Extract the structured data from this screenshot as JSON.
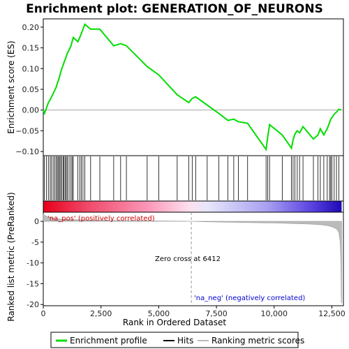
{
  "chart_data": {
    "type": "line",
    "title": "Enrichment plot: GENERATION_OF_NEURONS",
    "xlabel": "Rank in Ordered Dataset",
    "ylabel_top": "Enrichment score (ES)",
    "ylabel_bottom": "Ranked list metric (PreRanked)",
    "xlim": [
      0,
      13000
    ],
    "es_ylim": [
      -0.11,
      0.22
    ],
    "metric_ylim": [
      -20.3,
      2.2
    ],
    "x_ticks": [
      0,
      2500,
      5000,
      7500,
      10000,
      12500
    ],
    "x_tick_labels": [
      "0",
      "2,500",
      "5,000",
      "7,500",
      "10,000",
      "12,500"
    ],
    "es_ticks": [
      -0.1,
      -0.05,
      0.0,
      0.05,
      0.1,
      0.15,
      0.2
    ],
    "es_tick_labels": [
      "−0.10",
      "−0.05",
      "0.00",
      "0.05",
      "0.10",
      "0.15",
      "0.20"
    ],
    "metric_ticks": [
      0,
      -5,
      -10,
      -15,
      -20
    ],
    "metric_tick_labels": [
      "0",
      "-5",
      "-10",
      "-15",
      "-20"
    ],
    "zero_cross_rank": 6412,
    "zero_cross_label": "Zero cross at 6412",
    "pos_label": "'na_pos' (positively correlated)",
    "neg_label": "'na_neg' (negatively correlated)",
    "colors": {
      "es_line": "#00dd00",
      "hits": "#000000",
      "pos_label": "#cc0000",
      "neg_label": "#0000cc",
      "metric_fill": "#bbbbbb",
      "zero_line": "#999999"
    },
    "legend": [
      {
        "label": "Enrichment profile",
        "kind": "line-green"
      },
      {
        "label": "Hits",
        "kind": "line-black"
      },
      {
        "label": "Ranking metric scores",
        "kind": "line-gray"
      }
    ],
    "hit_ranks": [
      50,
      140,
      220,
      300,
      360,
      430,
      500,
      560,
      610,
      660,
      700,
      750,
      800,
      860,
      900,
      950,
      1000,
      1050,
      1120,
      1200,
      1250,
      1300,
      1500,
      1580,
      1650,
      1720,
      1800,
      2050,
      2450,
      3050,
      3350,
      3600,
      4500,
      5000,
      5800,
      6300,
      6450,
      6600,
      7100,
      7600,
      8000,
      8250,
      8450,
      8850,
      9650,
      9720,
      9800,
      10350,
      10750,
      10820,
      10900,
      11000,
      11100,
      11250,
      11700,
      11900,
      12000,
      12150,
      12300,
      12400,
      12450,
      12500,
      12600,
      12700,
      12800
    ],
    "es_points": [
      [
        0,
        0.0
      ],
      [
        50,
        -0.008
      ],
      [
        140,
        0.005
      ],
      [
        220,
        0.018
      ],
      [
        300,
        0.025
      ],
      [
        360,
        0.032
      ],
      [
        430,
        0.04
      ],
      [
        500,
        0.048
      ],
      [
        560,
        0.055
      ],
      [
        610,
        0.065
      ],
      [
        660,
        0.072
      ],
      [
        700,
        0.08
      ],
      [
        750,
        0.09
      ],
      [
        800,
        0.1
      ],
      [
        860,
        0.108
      ],
      [
        900,
        0.115
      ],
      [
        950,
        0.122
      ],
      [
        1000,
        0.13
      ],
      [
        1050,
        0.138
      ],
      [
        1120,
        0.145
      ],
      [
        1200,
        0.155
      ],
      [
        1250,
        0.165
      ],
      [
        1300,
        0.175
      ],
      [
        1500,
        0.165
      ],
      [
        1580,
        0.175
      ],
      [
        1650,
        0.185
      ],
      [
        1720,
        0.195
      ],
      [
        1800,
        0.207
      ],
      [
        2050,
        0.195
      ],
      [
        2450,
        0.195
      ],
      [
        3050,
        0.155
      ],
      [
        3350,
        0.16
      ],
      [
        3600,
        0.155
      ],
      [
        4500,
        0.105
      ],
      [
        5000,
        0.085
      ],
      [
        5800,
        0.037
      ],
      [
        6300,
        0.018
      ],
      [
        6450,
        0.028
      ],
      [
        6600,
        0.032
      ],
      [
        7100,
        0.012
      ],
      [
        7600,
        -0.008
      ],
      [
        8000,
        -0.025
      ],
      [
        8250,
        -0.022
      ],
      [
        8450,
        -0.028
      ],
      [
        8850,
        -0.032
      ],
      [
        9650,
        -0.095
      ],
      [
        9720,
        -0.065
      ],
      [
        9800,
        -0.035
      ],
      [
        10350,
        -0.06
      ],
      [
        10750,
        -0.092
      ],
      [
        10820,
        -0.072
      ],
      [
        10900,
        -0.058
      ],
      [
        11000,
        -0.05
      ],
      [
        11100,
        -0.055
      ],
      [
        11250,
        -0.04
      ],
      [
        11700,
        -0.07
      ],
      [
        11900,
        -0.06
      ],
      [
        12000,
        -0.045
      ],
      [
        12150,
        -0.06
      ],
      [
        12300,
        -0.045
      ],
      [
        12400,
        -0.03
      ],
      [
        12450,
        -0.022
      ],
      [
        12500,
        -0.018
      ],
      [
        12600,
        -0.01
      ],
      [
        12700,
        -0.005
      ],
      [
        12800,
        0.002
      ],
      [
        12900,
        0.0
      ]
    ],
    "metric_points": [
      [
        0,
        1.7
      ],
      [
        100,
        1.3
      ],
      [
        300,
        0.9
      ],
      [
        600,
        0.6
      ],
      [
        1000,
        0.45
      ],
      [
        2000,
        0.3
      ],
      [
        3000,
        0.2
      ],
      [
        4500,
        0.12
      ],
      [
        6000,
        0.05
      ],
      [
        6412,
        0.0
      ],
      [
        7000,
        -0.1
      ],
      [
        8000,
        -0.2
      ],
      [
        9000,
        -0.3
      ],
      [
        10000,
        -0.4
      ],
      [
        11000,
        -0.55
      ],
      [
        11500,
        -0.65
      ],
      [
        12000,
        -0.8
      ],
      [
        12300,
        -1.0
      ],
      [
        12500,
        -1.3
      ],
      [
        12700,
        -1.8
      ],
      [
        12800,
        -2.6
      ],
      [
        12860,
        -5.0
      ],
      [
        12890,
        -10.0
      ],
      [
        12910,
        -19.6
      ],
      [
        12920,
        -19.6
      ]
    ]
  }
}
